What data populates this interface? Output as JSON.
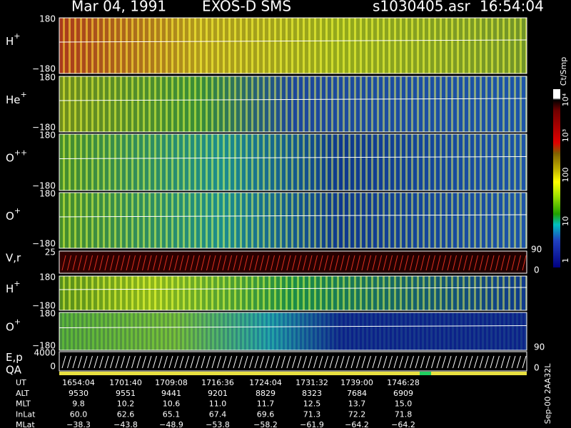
{
  "header": {
    "date": "Mar 04, 1991",
    "instrument": "EXOS-D SMS",
    "file": "s1030405.asr",
    "time": "16:54:04"
  },
  "panels": [
    {
      "label": "H",
      "sup": "+",
      "top": "180",
      "bottom": "−180"
    },
    {
      "label": "He",
      "sup": "+",
      "top": "180",
      "bottom": "−180"
    },
    {
      "label": "O",
      "sup": "++",
      "top": "180",
      "bottom": "−180"
    },
    {
      "label": "O",
      "sup": "+",
      "top": "180",
      "bottom": "−180"
    },
    {
      "label": "V,r",
      "top": "25",
      "right_top": "90",
      "right_bottom": "0"
    },
    {
      "label": "H",
      "sup": "+",
      "top": "180",
      "bottom": "−180"
    },
    {
      "label": "O",
      "sup": "+",
      "top": "180",
      "bottom": "−180",
      "right_bottom": "90"
    },
    {
      "label": "E,p",
      "label2": "QA",
      "top": "4000",
      "bottom": "0",
      "right_bottom": "0"
    }
  ],
  "colorbar": {
    "title": "Ct/Smp",
    "labels": [
      "10⁴",
      "10³",
      "100",
      "10",
      "1"
    ]
  },
  "footer": {
    "rows": [
      {
        "label": "UT",
        "values": [
          "1654:04",
          "1701:40",
          "1709:08",
          "1716:36",
          "1724:04",
          "1731:32",
          "1739:00",
          "1746:28"
        ]
      },
      {
        "label": "ALT",
        "values": [
          "9530",
          "9551",
          "9441",
          "9201",
          "8829",
          "8323",
          "7684",
          "6909"
        ]
      },
      {
        "label": "MLT",
        "values": [
          "9.8",
          "10.2",
          "10.6",
          "11.0",
          "11.7",
          "12.5",
          "13.7",
          "15.0"
        ]
      },
      {
        "label": "InLat",
        "values": [
          "60.0",
          "62.6",
          "65.1",
          "67.4",
          "69.6",
          "71.3",
          "72.2",
          "71.8"
        ]
      },
      {
        "label": "MLat",
        "values": [
          "−38.3",
          "−43.8",
          "−48.9",
          "−53.8",
          "−58.2",
          "−61.9",
          "−64.2",
          "−64.2"
        ]
      }
    ],
    "side": "Sep-00 2AA32L"
  }
}
